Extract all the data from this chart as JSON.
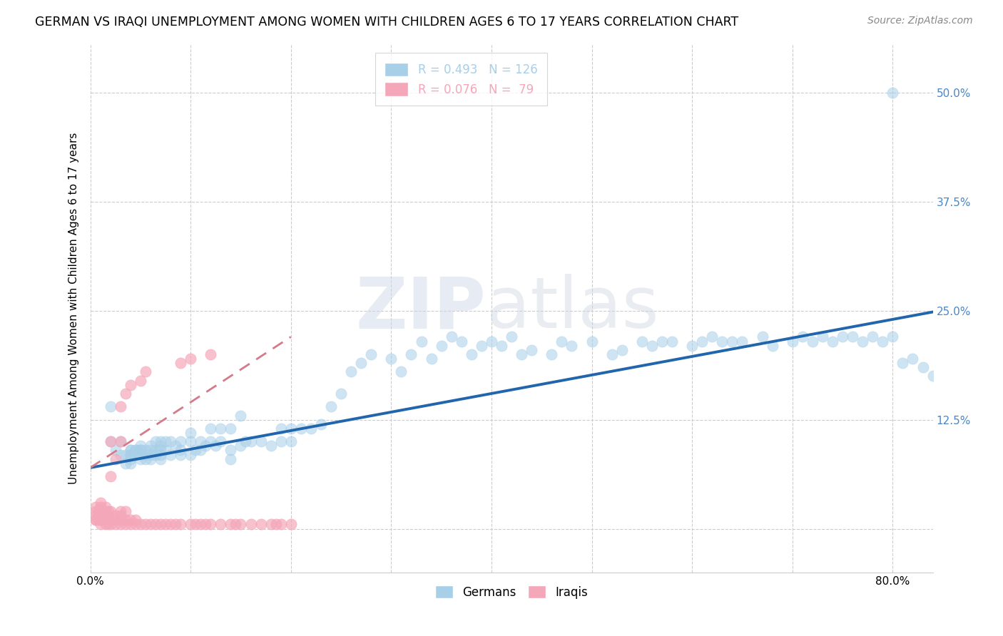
{
  "title": "GERMAN VS IRAQI UNEMPLOYMENT AMONG WOMEN WITH CHILDREN AGES 6 TO 17 YEARS CORRELATION CHART",
  "source": "Source: ZipAtlas.com",
  "ylabel": "Unemployment Among Women with Children Ages 6 to 17 years",
  "xlim": [
    0.0,
    0.84
  ],
  "ylim": [
    -0.05,
    0.555
  ],
  "german_color": "#a8cfe8",
  "iraqi_color": "#f4a7b9",
  "german_line_color": "#2166ac",
  "iraqi_line_color": "#d47a8a",
  "german_R": 0.493,
  "german_N": 126,
  "iraqi_R": 0.076,
  "iraqi_N": 79,
  "legend_label_german": "Germans",
  "legend_label_iraqi": "Iraqis",
  "watermark_zip": "ZIP",
  "watermark_atlas": "atlas",
  "title_fontsize": 12.5,
  "source_fontsize": 10,
  "tick_fontsize": 11,
  "ylabel_fontsize": 11,
  "legend_fontsize": 12,
  "german_scatter_x": [
    0.02,
    0.02,
    0.025,
    0.03,
    0.03,
    0.035,
    0.035,
    0.04,
    0.04,
    0.04,
    0.04,
    0.04,
    0.04,
    0.045,
    0.045,
    0.045,
    0.05,
    0.05,
    0.05,
    0.05,
    0.05,
    0.055,
    0.055,
    0.055,
    0.06,
    0.06,
    0.06,
    0.06,
    0.065,
    0.065,
    0.065,
    0.07,
    0.07,
    0.07,
    0.07,
    0.07,
    0.075,
    0.075,
    0.08,
    0.08,
    0.085,
    0.09,
    0.09,
    0.09,
    0.1,
    0.1,
    0.1,
    0.105,
    0.11,
    0.11,
    0.115,
    0.12,
    0.12,
    0.125,
    0.13,
    0.13,
    0.14,
    0.14,
    0.14,
    0.15,
    0.15,
    0.155,
    0.16,
    0.17,
    0.18,
    0.19,
    0.19,
    0.2,
    0.2,
    0.21,
    0.22,
    0.23,
    0.24,
    0.25,
    0.26,
    0.27,
    0.28,
    0.3,
    0.31,
    0.32,
    0.33,
    0.34,
    0.35,
    0.36,
    0.37,
    0.38,
    0.39,
    0.4,
    0.41,
    0.42,
    0.43,
    0.44,
    0.46,
    0.47,
    0.48,
    0.5,
    0.52,
    0.53,
    0.55,
    0.56,
    0.57,
    0.58,
    0.6,
    0.61,
    0.62,
    0.63,
    0.64,
    0.65,
    0.67,
    0.68,
    0.7,
    0.71,
    0.72,
    0.73,
    0.74,
    0.75,
    0.76,
    0.77,
    0.78,
    0.79,
    0.8,
    0.81,
    0.82,
    0.83,
    0.84,
    0.8
  ],
  "german_scatter_y": [
    0.14,
    0.1,
    0.09,
    0.1,
    0.085,
    0.085,
    0.075,
    0.09,
    0.09,
    0.085,
    0.08,
    0.085,
    0.075,
    0.09,
    0.085,
    0.09,
    0.095,
    0.09,
    0.085,
    0.08,
    0.09,
    0.09,
    0.085,
    0.08,
    0.095,
    0.09,
    0.085,
    0.08,
    0.1,
    0.09,
    0.085,
    0.1,
    0.095,
    0.09,
    0.085,
    0.08,
    0.1,
    0.09,
    0.1,
    0.085,
    0.095,
    0.1,
    0.09,
    0.085,
    0.11,
    0.1,
    0.085,
    0.09,
    0.1,
    0.09,
    0.095,
    0.115,
    0.1,
    0.095,
    0.115,
    0.1,
    0.115,
    0.09,
    0.08,
    0.13,
    0.095,
    0.1,
    0.1,
    0.1,
    0.095,
    0.1,
    0.115,
    0.115,
    0.1,
    0.115,
    0.115,
    0.12,
    0.14,
    0.155,
    0.18,
    0.19,
    0.2,
    0.195,
    0.18,
    0.2,
    0.215,
    0.195,
    0.21,
    0.22,
    0.215,
    0.2,
    0.21,
    0.215,
    0.21,
    0.22,
    0.2,
    0.205,
    0.2,
    0.215,
    0.21,
    0.215,
    0.2,
    0.205,
    0.215,
    0.21,
    0.215,
    0.215,
    0.21,
    0.215,
    0.22,
    0.215,
    0.215,
    0.215,
    0.22,
    0.21,
    0.215,
    0.22,
    0.215,
    0.22,
    0.215,
    0.22,
    0.22,
    0.215,
    0.22,
    0.215,
    0.22,
    0.19,
    0.195,
    0.185,
    0.175,
    0.5
  ],
  "iraqi_scatter_x": [
    0.005,
    0.005,
    0.005,
    0.005,
    0.005,
    0.008,
    0.008,
    0.008,
    0.01,
    0.01,
    0.01,
    0.01,
    0.01,
    0.01,
    0.012,
    0.012,
    0.012,
    0.015,
    0.015,
    0.015,
    0.015,
    0.015,
    0.018,
    0.018,
    0.018,
    0.018,
    0.02,
    0.02,
    0.02,
    0.02,
    0.02,
    0.025,
    0.025,
    0.025,
    0.025,
    0.03,
    0.03,
    0.03,
    0.03,
    0.03,
    0.03,
    0.035,
    0.035,
    0.035,
    0.035,
    0.04,
    0.04,
    0.04,
    0.045,
    0.045,
    0.05,
    0.05,
    0.055,
    0.055,
    0.06,
    0.065,
    0.07,
    0.075,
    0.08,
    0.085,
    0.09,
    0.09,
    0.1,
    0.1,
    0.105,
    0.11,
    0.115,
    0.12,
    0.12,
    0.13,
    0.14,
    0.145,
    0.15,
    0.16,
    0.17,
    0.18,
    0.185,
    0.19,
    0.2
  ],
  "iraqi_scatter_y": [
    0.01,
    0.01,
    0.015,
    0.02,
    0.025,
    0.01,
    0.015,
    0.02,
    0.005,
    0.01,
    0.015,
    0.02,
    0.025,
    0.03,
    0.01,
    0.015,
    0.02,
    0.005,
    0.01,
    0.015,
    0.02,
    0.025,
    0.005,
    0.01,
    0.015,
    0.02,
    0.005,
    0.01,
    0.02,
    0.06,
    0.1,
    0.005,
    0.01,
    0.015,
    0.08,
    0.005,
    0.01,
    0.015,
    0.02,
    0.1,
    0.14,
    0.005,
    0.01,
    0.02,
    0.155,
    0.005,
    0.01,
    0.165,
    0.005,
    0.01,
    0.005,
    0.17,
    0.005,
    0.18,
    0.005,
    0.005,
    0.005,
    0.005,
    0.005,
    0.005,
    0.005,
    0.19,
    0.005,
    0.195,
    0.005,
    0.005,
    0.005,
    0.005,
    0.2,
    0.005,
    0.005,
    0.005,
    0.005,
    0.005,
    0.005,
    0.005,
    0.005,
    0.005,
    0.005
  ]
}
